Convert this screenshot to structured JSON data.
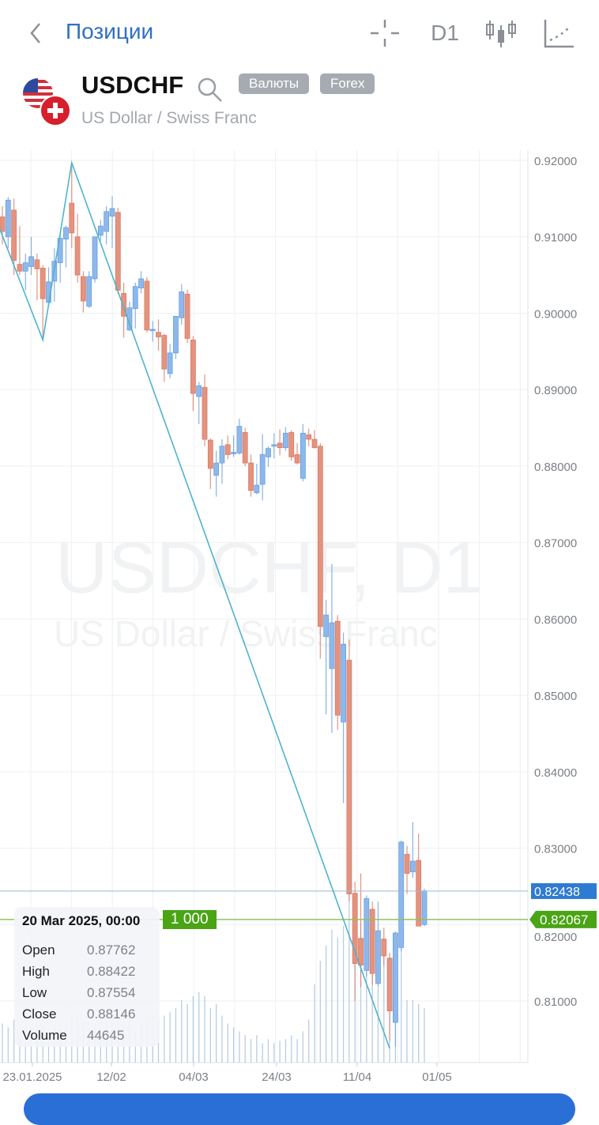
{
  "header": {
    "back_label": "Позиции",
    "timeframe": "D1",
    "icons": [
      "chevron-left-icon",
      "crosshair-icon",
      "candlestick-type-icon",
      "indicators-icon"
    ]
  },
  "instrument": {
    "symbol": "USDCHF",
    "description": "US Dollar / Swiss Franc",
    "tags": [
      "Валюты",
      "Forex"
    ],
    "watermark_title": "USDCHF, D1",
    "watermark_subtitle": "US Dollar / Swiss Franc"
  },
  "tooltip": {
    "date": "20 Mar 2025, 00:00",
    "rows": [
      {
        "label": "Open",
        "value": "0.87762"
      },
      {
        "label": "High",
        "value": "0.88422"
      },
      {
        "label": "Low",
        "value": "0.87554"
      },
      {
        "label": "Close",
        "value": "0.88146"
      },
      {
        "label": "Volume",
        "value": "44645"
      }
    ]
  },
  "order_tag": "1 000",
  "colors": {
    "bull": "#8db8ec",
    "bear": "#e4937f",
    "zigzag": "#4fb3cf",
    "last_price": "#2f7bd1",
    "bid_line": "#5aaa1e",
    "accent": "#2f6fc6"
  },
  "chart_data": {
    "type": "candlestick",
    "y_ticks": [
      "0.92000",
      "0.91000",
      "0.90000",
      "0.89000",
      "0.88000",
      "0.87000",
      "0.86000",
      "0.85000",
      "0.84000",
      "0.83000",
      "0.82000",
      "0.81000"
    ],
    "ylim": [
      0.802,
      0.921
    ],
    "x_ticks": [
      "23.01.2025",
      "12/02",
      "04/03",
      "24/03",
      "11/04",
      "01/05"
    ],
    "grid": true,
    "price_lines": [
      {
        "value": "0.82438",
        "color": "#2f7bd1"
      },
      {
        "value": "0.82067",
        "color": "#5aaa1e"
      }
    ],
    "candles": [
      [
        0.9126,
        0.914,
        0.909,
        0.9107
      ],
      [
        0.91,
        0.9152,
        0.9085,
        0.9148
      ],
      [
        0.9135,
        0.915,
        0.905,
        0.9069
      ],
      [
        0.9064,
        0.9114,
        0.905,
        0.9055
      ],
      [
        0.9055,
        0.9078,
        0.903,
        0.9066
      ],
      [
        0.9061,
        0.91,
        0.905,
        0.9074
      ],
      [
        0.907,
        0.9078,
        0.9017,
        0.9058
      ],
      [
        0.9059,
        0.9063,
        0.8965,
        0.9019
      ],
      [
        0.9014,
        0.906,
        0.901,
        0.9041
      ],
      [
        0.9042,
        0.9085,
        0.9015,
        0.9068
      ],
      [
        0.9066,
        0.9105,
        0.904,
        0.9098
      ],
      [
        0.9097,
        0.9115,
        0.906,
        0.9112
      ],
      [
        0.9144,
        0.9197,
        0.9085,
        0.9105
      ],
      [
        0.91,
        0.913,
        0.904,
        0.905
      ],
      [
        0.9048,
        0.9055,
        0.9001,
        0.9016
      ],
      [
        0.9009,
        0.9055,
        0.9007,
        0.9048
      ],
      [
        0.9045,
        0.91,
        0.904,
        0.91
      ],
      [
        0.9102,
        0.9122,
        0.9095,
        0.9114
      ],
      [
        0.9107,
        0.914,
        0.909,
        0.9133
      ],
      [
        0.9127,
        0.9153,
        0.9085,
        0.9137
      ],
      [
        0.9132,
        0.9138,
        0.9025,
        0.903
      ],
      [
        0.9026,
        0.904,
        0.8968,
        0.8996
      ],
      [
        0.8978,
        0.9015,
        0.8977,
        0.9007
      ],
      [
        0.9006,
        0.904,
        0.898,
        0.9035
      ],
      [
        0.9033,
        0.9055,
        0.9026,
        0.9045
      ],
      [
        0.9042,
        0.9047,
        0.8975,
        0.8978
      ],
      [
        0.8977,
        0.899,
        0.8963,
        0.8979
      ],
      [
        0.8975,
        0.8992,
        0.8951,
        0.8969
      ],
      [
        0.8971,
        0.8973,
        0.891,
        0.8927
      ],
      [
        0.8921,
        0.896,
        0.8915,
        0.8948
      ],
      [
        0.8948,
        0.8996,
        0.894,
        0.8996
      ],
      [
        0.8994,
        0.9038,
        0.8985,
        0.9028
      ],
      [
        0.9025,
        0.9031,
        0.8961,
        0.8967
      ],
      [
        0.8965,
        0.897,
        0.8872,
        0.8895
      ],
      [
        0.8891,
        0.891,
        0.8855,
        0.8905
      ],
      [
        0.8903,
        0.892,
        0.8826,
        0.8835
      ],
      [
        0.8834,
        0.8836,
        0.877,
        0.8797
      ],
      [
        0.8788,
        0.882,
        0.876,
        0.8804
      ],
      [
        0.8804,
        0.8835,
        0.8777,
        0.8826
      ],
      [
        0.8828,
        0.884,
        0.8809,
        0.8815
      ],
      [
        0.8816,
        0.884,
        0.8812,
        0.8818
      ],
      [
        0.8817,
        0.8862,
        0.8815,
        0.8852
      ],
      [
        0.8844,
        0.885,
        0.88,
        0.8804
      ],
      [
        0.8804,
        0.8815,
        0.876,
        0.8768
      ],
      [
        0.8765,
        0.8803,
        0.8763,
        0.8775
      ],
      [
        0.8776,
        0.8842,
        0.8755,
        0.8815
      ],
      [
        0.8812,
        0.8826,
        0.8799,
        0.8823
      ],
      [
        0.8826,
        0.8843,
        0.881,
        0.8828
      ],
      [
        0.883,
        0.8848,
        0.8814,
        0.8824
      ],
      [
        0.8824,
        0.8851,
        0.882,
        0.8843
      ],
      [
        0.8844,
        0.8847,
        0.8807,
        0.8812
      ],
      [
        0.8815,
        0.883,
        0.8802,
        0.8804
      ],
      [
        0.8784,
        0.8855,
        0.878,
        0.8843
      ],
      [
        0.8841,
        0.8849,
        0.8826,
        0.8835
      ],
      [
        0.8835,
        0.8847,
        0.8823,
        0.8824
      ],
      [
        0.8826,
        0.883,
        0.8548,
        0.859
      ],
      [
        0.8577,
        0.8625,
        0.8475,
        0.8605
      ],
      [
        0.8535,
        0.8672,
        0.8451,
        0.8595
      ],
      [
        0.8597,
        0.8605,
        0.8455,
        0.8474
      ],
      [
        0.8465,
        0.8582,
        0.8359,
        0.8567
      ],
      [
        0.8546,
        0.8573,
        0.8231,
        0.824
      ],
      [
        0.8241,
        0.8256,
        0.81,
        0.8149
      ],
      [
        0.8182,
        0.8267,
        0.8118,
        0.8147
      ],
      [
        0.814,
        0.8238,
        0.8132,
        0.8234
      ],
      [
        0.822,
        0.823,
        0.8121,
        0.8136
      ],
      [
        0.8123,
        0.823,
        0.812,
        0.8192
      ],
      [
        0.8181,
        0.8196,
        0.8146,
        0.8159
      ],
      [
        0.8156,
        0.8163,
        0.8048,
        0.8087
      ],
      [
        0.8072,
        0.8191,
        0.804,
        0.8189
      ],
      [
        0.817,
        0.831,
        0.8165,
        0.8308
      ],
      [
        0.8292,
        0.8303,
        0.824,
        0.8267
      ],
      [
        0.8269,
        0.8334,
        0.8261,
        0.8283
      ],
      [
        0.8284,
        0.8319,
        0.8198,
        0.8198
      ],
      [
        0.82,
        0.8247,
        0.8198,
        0.8244
      ]
    ],
    "volumes": [
      90000,
      81000,
      99000,
      72000,
      86000,
      81000,
      90000,
      99000,
      72000,
      90000,
      81000,
      86000,
      108000,
      99000,
      90000,
      81000,
      90000,
      81000,
      99000,
      90000,
      99000,
      90000,
      108000,
      81000,
      90000,
      99000,
      108000,
      99000,
      108000,
      117000,
      126000,
      144000,
      135000,
      153000,
      162000,
      153000,
      126000,
      135000,
      108000,
      90000,
      81000,
      72000,
      63000,
      54000,
      63000,
      44645,
      54000,
      45000,
      50000,
      54000,
      63000,
      54000,
      72000,
      99000,
      180000,
      234000,
      270000,
      306000,
      288000,
      315000,
      432000,
      342000,
      324000,
      270000,
      306000,
      252000,
      288000,
      243000,
      198000,
      297000,
      144000,
      144000,
      135000,
      126000
    ],
    "zigzag": [
      [
        -3,
        0.916
      ],
      [
        7,
        0.8965
      ],
      [
        12,
        0.9197
      ],
      [
        67,
        0.8038
      ]
    ]
  },
  "bottom_button": {
    "label": ""
  }
}
